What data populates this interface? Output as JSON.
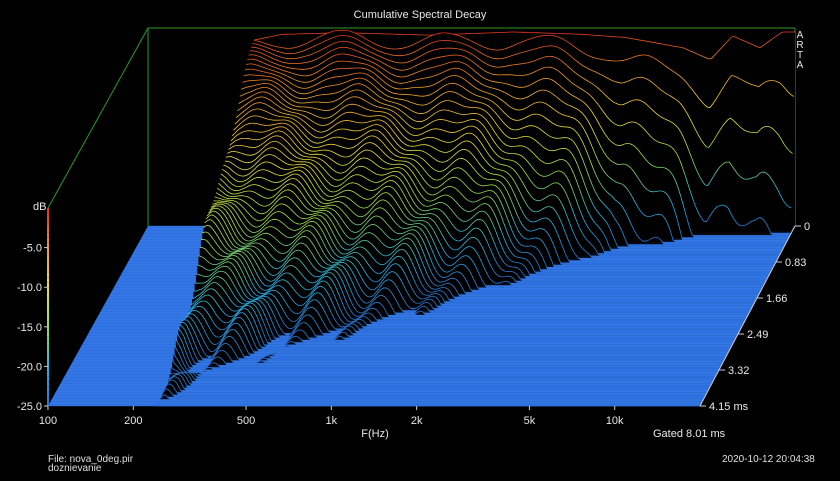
{
  "chart_data": {
    "type": "area",
    "title": "Cumulative Spectral Decay",
    "xlabel": "F(Hz)",
    "ylabel": "dB",
    "zlabel": "ms",
    "x_scale": "log",
    "xlim": [
      100,
      20000
    ],
    "x_ticks": [
      {
        "value": 100,
        "label": "100"
      },
      {
        "value": 200,
        "label": "200"
      },
      {
        "value": 500,
        "label": "500"
      },
      {
        "value": 1000,
        "label": "1k"
      },
      {
        "value": 2000,
        "label": "2k"
      },
      {
        "value": 5000,
        "label": "5k"
      },
      {
        "value": 10000,
        "label": "10k"
      }
    ],
    "ylim": [
      -25,
      0
    ],
    "y_ticks": [
      {
        "value": -5,
        "label": "-5.0"
      },
      {
        "value": -10,
        "label": "-10.0"
      },
      {
        "value": -15,
        "label": "-15.0"
      },
      {
        "value": -20,
        "label": "-20.0"
      },
      {
        "value": -25,
        "label": "-25.0"
      }
    ],
    "zlim": [
      0,
      4.15
    ],
    "z_ticks": [
      {
        "value": 0,
        "label": "0"
      },
      {
        "value": 0.83,
        "label": "0.83"
      },
      {
        "value": 1.66,
        "label": "1.66"
      },
      {
        "value": 2.49,
        "label": "2.49"
      },
      {
        "value": 3.32,
        "label": "3.32"
      },
      {
        "value": 4.15,
        "label": "4.15 ms"
      }
    ],
    "analysis_start_hz": 240,
    "num_slices": 80,
    "initial_response_db": [
      {
        "freq": 240,
        "db": -1.5
      },
      {
        "freq": 300,
        "db": -0.8
      },
      {
        "freq": 500,
        "db": -0.6
      },
      {
        "freq": 1000,
        "db": -0.9
      },
      {
        "freq": 2000,
        "db": -0.5
      },
      {
        "freq": 3500,
        "db": -0.8
      },
      {
        "freq": 5000,
        "db": -1.2
      },
      {
        "freq": 8000,
        "db": -2.5
      },
      {
        "freq": 10000,
        "db": -4.0
      },
      {
        "freq": 12000,
        "db": -1.0
      },
      {
        "freq": 15000,
        "db": -2.5
      },
      {
        "freq": 18000,
        "db": -0.5
      }
    ],
    "decay_ms_to_floor": [
      {
        "freq": 250,
        "ms": 4.15
      },
      {
        "freq": 300,
        "ms": 3.6
      },
      {
        "freq": 500,
        "ms": 3.0
      },
      {
        "freq": 1000,
        "ms": 2.4
      },
      {
        "freq": 2000,
        "ms": 1.6
      },
      {
        "freq": 5000,
        "ms": 0.6
      },
      {
        "freq": 10000,
        "ms": 0.3
      },
      {
        "freq": 20000,
        "ms": 0.2
      }
    ],
    "colormap": [
      "#2a6fd6",
      "#29b6e8",
      "#9be24a",
      "#f2e23a",
      "#f39a2a",
      "#e0301e"
    ],
    "floor_color": "#2d6fe0",
    "frame_color": "#2a9a2a",
    "brand_text": "ARTA",
    "gated": "Gated 8.01 ms"
  },
  "footer": {
    "file": "File: nova_0deg.pir",
    "note": "doznievanie",
    "timestamp": "2020-10-12  20:04:38"
  }
}
